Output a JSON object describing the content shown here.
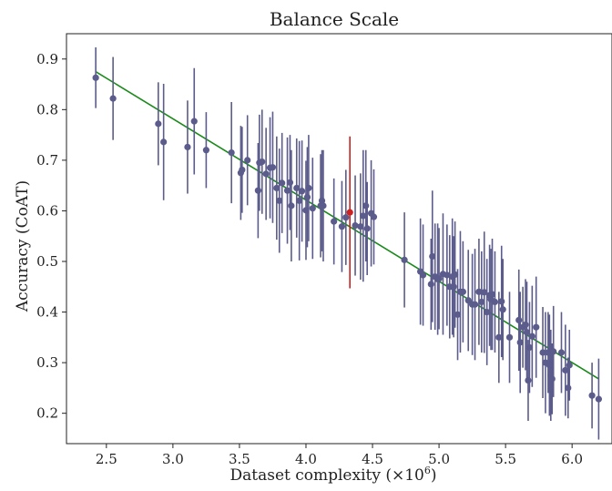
{
  "chart_data": {
    "type": "scatter",
    "title": "Balance Scale",
    "xlabel": "Dataset complexity (×10",
    "xlabel_exp": "6",
    "xlabel_close": ")",
    "ylabel": "Accuracy (CoAT)",
    "xlim": [
      2.2,
      6.3
    ],
    "ylim": [
      0.14,
      0.95
    ],
    "xticks": [
      2.5,
      3.0,
      3.5,
      4.0,
      4.5,
      5.0,
      5.5,
      6.0
    ],
    "xtick_labels": [
      "2.5",
      "3.0",
      "3.5",
      "4.0",
      "4.5",
      "5.0",
      "5.5",
      "6.0"
    ],
    "yticks": [
      0.2,
      0.3,
      0.4,
      0.5,
      0.6,
      0.7,
      0.8,
      0.9
    ],
    "ytick_labels": [
      "0.2",
      "0.3",
      "0.4",
      "0.5",
      "0.6",
      "0.7",
      "0.8",
      "0.9"
    ],
    "grid": false,
    "colors": {
      "points": "#5b5b8c",
      "highlight": "#cc2222",
      "fit": "#1a8a1a"
    },
    "fit_line": {
      "x": [
        2.42,
        6.2
      ],
      "y": [
        0.875,
        0.268
      ]
    },
    "series": [
      {
        "points": [
          [
            2.42,
            0.863,
            0.06
          ],
          [
            2.55,
            0.822,
            0.082
          ],
          [
            2.89,
            0.772,
            0.082
          ],
          [
            2.93,
            0.736,
            0.115
          ],
          [
            3.11,
            0.726,
            0.092
          ],
          [
            3.16,
            0.777,
            0.105
          ],
          [
            3.25,
            0.72,
            0.075
          ],
          [
            3.44,
            0.715,
            0.1
          ],
          [
            3.51,
            0.675,
            0.093
          ],
          [
            3.52,
            0.681,
            0.085
          ],
          [
            3.56,
            0.7,
            0.089
          ],
          [
            3.64,
            0.64,
            0.094
          ],
          [
            3.65,
            0.695,
            0.095
          ],
          [
            3.67,
            0.697,
            0.103
          ],
          [
            3.7,
            0.673,
            0.091
          ],
          [
            3.73,
            0.685,
            0.1
          ],
          [
            3.75,
            0.686,
            0.11
          ],
          [
            3.78,
            0.645,
            0.102
          ],
          [
            3.8,
            0.62,
            0.103
          ],
          [
            3.82,
            0.655,
            0.099
          ],
          [
            3.86,
            0.64,
            0.105
          ],
          [
            3.88,
            0.656,
            0.094
          ],
          [
            3.89,
            0.61,
            0.11
          ],
          [
            3.93,
            0.645,
            0.098
          ],
          [
            3.95,
            0.62,
            0.118
          ],
          [
            3.97,
            0.639,
            0.1
          ],
          [
            4.0,
            0.601,
            0.098
          ],
          [
            4.01,
            0.627,
            0.099
          ],
          [
            4.02,
            0.645,
            0.105
          ],
          [
            4.05,
            0.605,
            0.1
          ],
          [
            4.11,
            0.61,
            0.102
          ],
          [
            4.12,
            0.62,
            0.1
          ],
          [
            4.13,
            0.61,
            0.11
          ],
          [
            4.21,
            0.579,
            0.085
          ],
          [
            4.27,
            0.569,
            0.09
          ],
          [
            4.3,
            0.587,
            0.094
          ],
          [
            4.37,
            0.571,
            0.099
          ],
          [
            4.41,
            0.569,
            0.105
          ],
          [
            4.43,
            0.59,
            0.13
          ],
          [
            4.45,
            0.61,
            0.11
          ],
          [
            4.46,
            0.565,
            0.092
          ],
          [
            4.49,
            0.595,
            0.105
          ],
          [
            4.51,
            0.588,
            0.094
          ],
          [
            4.74,
            0.503,
            0.094
          ],
          [
            4.86,
            0.48,
            0.105
          ],
          [
            4.88,
            0.473,
            0.1
          ],
          [
            4.94,
            0.455,
            0.09
          ],
          [
            4.95,
            0.51,
            0.13
          ],
          [
            4.97,
            0.47,
            0.105
          ],
          [
            4.99,
            0.465,
            0.11
          ],
          [
            5.0,
            0.466,
            0.1
          ],
          [
            5.03,
            0.475,
            0.12
          ],
          [
            5.06,
            0.473,
            0.1
          ],
          [
            5.08,
            0.45,
            0.102
          ],
          [
            5.1,
            0.47,
            0.115
          ],
          [
            5.11,
            0.45,
            0.1
          ],
          [
            5.12,
            0.474,
            0.105
          ],
          [
            5.14,
            0.395,
            0.09
          ],
          [
            5.16,
            0.44,
            0.12
          ],
          [
            5.18,
            0.44,
            0.1
          ],
          [
            5.22,
            0.423,
            0.1
          ],
          [
            5.25,
            0.415,
            0.1
          ],
          [
            5.27,
            0.415,
            0.11
          ],
          [
            5.3,
            0.44,
            0.105
          ],
          [
            5.32,
            0.42,
            0.1
          ],
          [
            5.34,
            0.439,
            0.12
          ],
          [
            5.36,
            0.4,
            0.105
          ],
          [
            5.38,
            0.433,
            0.1
          ],
          [
            5.39,
            0.425,
            0.1
          ],
          [
            5.4,
            0.435,
            0.11
          ],
          [
            5.42,
            0.42,
            0.1
          ],
          [
            5.45,
            0.35,
            0.09
          ],
          [
            5.47,
            0.421,
            0.11
          ],
          [
            5.48,
            0.405,
            0.1
          ],
          [
            5.53,
            0.35,
            0.09
          ],
          [
            5.6,
            0.384,
            0.1
          ],
          [
            5.61,
            0.34,
            0.1
          ],
          [
            5.63,
            0.37,
            0.08
          ],
          [
            5.65,
            0.375,
            0.09
          ],
          [
            5.66,
            0.36,
            0.1
          ],
          [
            5.67,
            0.265,
            0.08
          ],
          [
            5.68,
            0.33,
            0.09
          ],
          [
            5.7,
            0.352,
            0.1
          ],
          [
            5.73,
            0.37,
            0.1
          ],
          [
            5.78,
            0.32,
            0.09
          ],
          [
            5.8,
            0.3,
            0.1
          ],
          [
            5.82,
            0.32,
            0.08
          ],
          [
            5.83,
            0.295,
            0.1
          ],
          [
            5.84,
            0.275,
            0.09
          ],
          [
            5.85,
            0.268,
            0.07
          ],
          [
            5.86,
            0.322,
            0.09
          ],
          [
            5.92,
            0.32,
            0.08
          ],
          [
            5.95,
            0.285,
            0.09
          ],
          [
            5.97,
            0.25,
            0.06
          ],
          [
            5.98,
            0.295,
            0.07
          ],
          [
            6.15,
            0.235,
            0.065
          ],
          [
            6.2,
            0.228,
            0.08
          ]
        ]
      }
    ],
    "highlight": [
      [
        4.33,
        0.597,
        0.15
      ]
    ]
  }
}
